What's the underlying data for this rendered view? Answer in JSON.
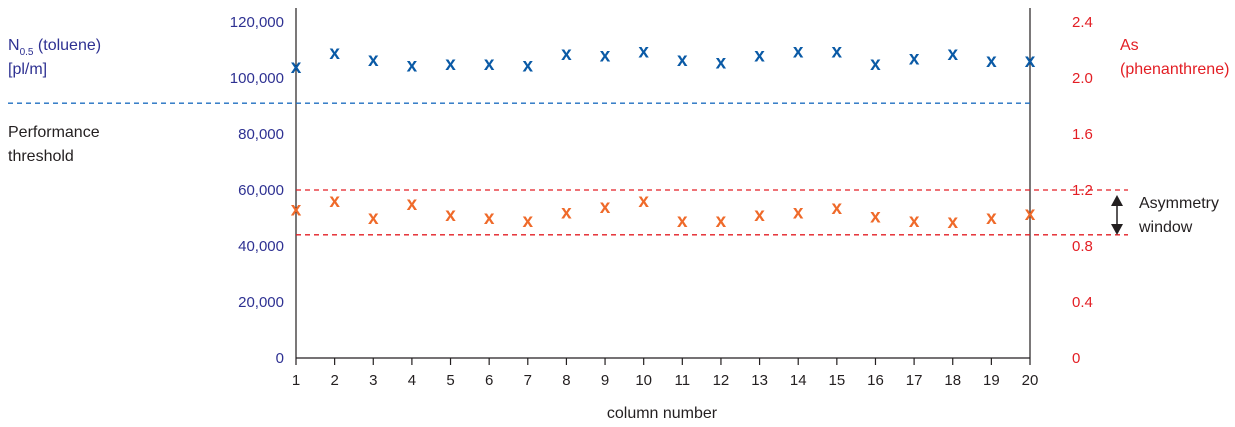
{
  "chart_data": {
    "type": "scatter",
    "x": [
      1,
      2,
      3,
      4,
      5,
      6,
      7,
      8,
      9,
      10,
      11,
      12,
      13,
      14,
      15,
      16,
      17,
      18,
      19,
      20
    ],
    "xlabel": "column number",
    "x_ticks": [
      "1",
      "2",
      "3",
      "4",
      "5",
      "6",
      "7",
      "8",
      "9",
      "10",
      "11",
      "12",
      "13",
      "14",
      "15",
      "16",
      "17",
      "18",
      "19",
      "20"
    ],
    "marker": "x",
    "left_axis": {
      "label_main": "N",
      "label_sub": "0.5",
      "label_rest": " (toluene)",
      "label_line2": "[pl/m]",
      "range": [
        0,
        120000
      ],
      "ticks": [
        "0",
        "20,000",
        "40,000",
        "60,000",
        "80,000",
        "100,000",
        "120,000"
      ],
      "tick_values": [
        0,
        20000,
        40000,
        60000,
        80000,
        100000,
        120000
      ],
      "color": "#2e3192"
    },
    "right_axis": {
      "label_line1": "As",
      "label_line2": "(phenanthrene)",
      "range": [
        0,
        2.4
      ],
      "ticks": [
        "0",
        "0.4",
        "0.8",
        "1.2",
        "1.6",
        "2.0",
        "2.4"
      ],
      "tick_values": [
        0,
        0.4,
        0.8,
        1.2,
        1.6,
        2.0,
        2.4
      ],
      "color": "#e31e24"
    },
    "series": [
      {
        "axis": "left",
        "color": "#0a5aa6",
        "values": [
          104000,
          109000,
          106500,
          104500,
          105000,
          105000,
          104500,
          108500,
          108000,
          109500,
          106500,
          105500,
          108000,
          109500,
          109500,
          105000,
          107000,
          108500,
          106000,
          106000
        ]
      },
      {
        "axis": "right",
        "color": "#ef6a2a",
        "values": [
          1.06,
          1.12,
          1.0,
          1.1,
          1.02,
          1.0,
          0.98,
          1.04,
          1.08,
          1.12,
          0.98,
          0.98,
          1.02,
          1.04,
          1.07,
          1.01,
          0.98,
          0.97,
          1.0,
          1.03
        ]
      }
    ],
    "performance_threshold": {
      "value": 91000,
      "axis": "left",
      "label_line1": "Performance",
      "label_line2": "threshold",
      "color": "#1f6fc0"
    },
    "asymmetry_window": {
      "lower": 0.88,
      "upper": 1.2,
      "axis": "right",
      "label_line1": "Asymmetry",
      "label_line2": "window",
      "color": "#e31e24"
    }
  }
}
